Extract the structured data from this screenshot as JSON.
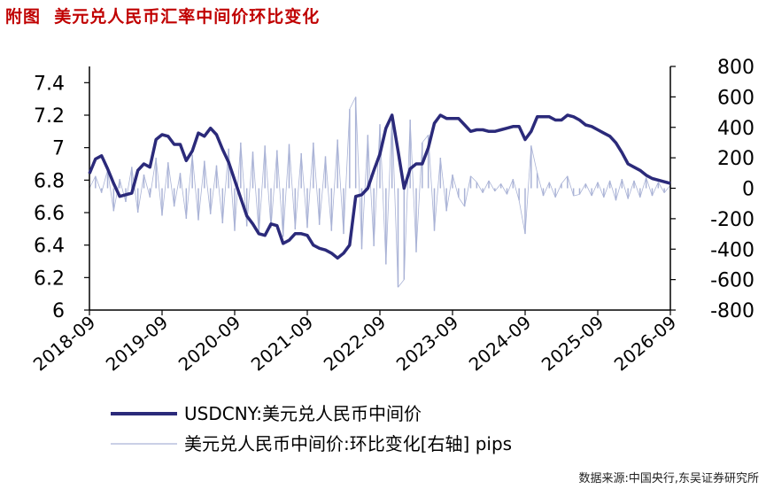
{
  "title": "附图  美元兑人民币汇率中间价环比变化",
  "source": "数据来源:中国央行,东吴证券研究所",
  "colors": {
    "title": "#c00000",
    "line": "#2b2a7a",
    "bars": "#aab3d6"
  },
  "chart_data": {
    "type": "line",
    "x_ticks": [
      "2018-09",
      "2019-09",
      "2020-09",
      "2021-09",
      "2022-09",
      "2023-09",
      "2024-09",
      "2025-09",
      "2026-09"
    ],
    "y_left_ticks": [
      "7.4",
      "7.2",
      "7",
      "6.8",
      "6.6",
      "6.4",
      "6.2",
      "6"
    ],
    "y_right_ticks": [
      "800",
      "600",
      "400",
      "200",
      "0",
      "-200",
      "-400",
      "-600",
      "-800"
    ],
    "ylim_left": [
      6,
      7.5
    ],
    "ylim_right": [
      -800,
      800
    ],
    "legend": [
      {
        "label": "USDCNY:美元兑人民币中间价",
        "key": "line"
      },
      {
        "label": "美元兑人民币中间价:环比变化[右轴] pips",
        "key": "bars"
      }
    ],
    "series": [
      {
        "name": "USDCNY:美元兑人民币中间价",
        "axis": "left",
        "points": [
          [
            "2018-09",
            6.84
          ],
          [
            "2018-10",
            6.93
          ],
          [
            "2018-11",
            6.95
          ],
          [
            "2018-12",
            6.87
          ],
          [
            "2019-01",
            6.78
          ],
          [
            "2019-02",
            6.7
          ],
          [
            "2019-03",
            6.71
          ],
          [
            "2019-04",
            6.72
          ],
          [
            "2019-05",
            6.86
          ],
          [
            "2019-06",
            6.9
          ],
          [
            "2019-07",
            6.88
          ],
          [
            "2019-08",
            7.05
          ],
          [
            "2019-09",
            7.08
          ],
          [
            "2019-10",
            7.07
          ],
          [
            "2019-11",
            7.02
          ],
          [
            "2019-12",
            7.02
          ],
          [
            "2020-01",
            6.92
          ],
          [
            "2020-02",
            6.98
          ],
          [
            "2020-03",
            7.09
          ],
          [
            "2020-04",
            7.07
          ],
          [
            "2020-05",
            7.12
          ],
          [
            "2020-06",
            7.08
          ],
          [
            "2020-07",
            6.99
          ],
          [
            "2020-08",
            6.91
          ],
          [
            "2020-09",
            6.8
          ],
          [
            "2020-10",
            6.69
          ],
          [
            "2020-11",
            6.58
          ],
          [
            "2020-12",
            6.53
          ],
          [
            "2021-01",
            6.47
          ],
          [
            "2021-02",
            6.46
          ],
          [
            "2021-03",
            6.53
          ],
          [
            "2021-04",
            6.52
          ],
          [
            "2021-05",
            6.41
          ],
          [
            "2021-06",
            6.43
          ],
          [
            "2021-07",
            6.47
          ],
          [
            "2021-08",
            6.47
          ],
          [
            "2021-09",
            6.46
          ],
          [
            "2021-10",
            6.4
          ],
          [
            "2021-11",
            6.38
          ],
          [
            "2021-12",
            6.37
          ],
          [
            "2022-01",
            6.35
          ],
          [
            "2022-02",
            6.32
          ],
          [
            "2022-03",
            6.35
          ],
          [
            "2022-04",
            6.4
          ],
          [
            "2022-05",
            6.7
          ],
          [
            "2022-06",
            6.71
          ],
          [
            "2022-07",
            6.75
          ],
          [
            "2022-08",
            6.86
          ],
          [
            "2022-09",
            6.96
          ],
          [
            "2022-10",
            7.12
          ],
          [
            "2022-11",
            7.2
          ],
          [
            "2022-12",
            6.98
          ],
          [
            "2023-01",
            6.75
          ],
          [
            "2023-02",
            6.87
          ],
          [
            "2023-03",
            6.9
          ],
          [
            "2023-04",
            6.9
          ],
          [
            "2023-05",
            7.0
          ],
          [
            "2023-06",
            7.15
          ],
          [
            "2023-07",
            7.2
          ],
          [
            "2023-08",
            7.18
          ],
          [
            "2023-09",
            7.18
          ],
          [
            "2023-10",
            7.18
          ],
          [
            "2023-11",
            7.14
          ],
          [
            "2023-12",
            7.1
          ],
          [
            "2024-01",
            7.11
          ],
          [
            "2024-02",
            7.11
          ],
          [
            "2024-03",
            7.1
          ],
          [
            "2024-04",
            7.1
          ],
          [
            "2024-05",
            7.11
          ],
          [
            "2024-06",
            7.12
          ],
          [
            "2024-07",
            7.13
          ],
          [
            "2024-08",
            7.13
          ],
          [
            "2024-09",
            7.05
          ],
          [
            "2024-10",
            7.1
          ],
          [
            "2024-11",
            7.19
          ],
          [
            "2024-12",
            7.19
          ],
          [
            "2025-01",
            7.19
          ],
          [
            "2025-02",
            7.17
          ],
          [
            "2025-03",
            7.17
          ],
          [
            "2025-04",
            7.2
          ],
          [
            "2025-05",
            7.19
          ],
          [
            "2025-06",
            7.17
          ],
          [
            "2025-07",
            7.14
          ],
          [
            "2025-08",
            7.13
          ],
          [
            "2025-09",
            7.11
          ],
          [
            "2025-10",
            7.09
          ],
          [
            "2025-11",
            7.07
          ],
          [
            "2025-12",
            7.03
          ],
          [
            "2026-01",
            6.97
          ],
          [
            "2026-02",
            6.9
          ],
          [
            "2026-03",
            6.88
          ],
          [
            "2026-04",
            6.86
          ],
          [
            "2026-05",
            6.83
          ],
          [
            "2026-06",
            6.81
          ],
          [
            "2026-07",
            6.8
          ],
          [
            "2026-08",
            6.79
          ],
          [
            "2026-09",
            6.78
          ]
        ]
      },
      {
        "name": "美元兑人民币中间价:环比变化[右轴] pips",
        "axis": "right",
        "points": [
          [
            "2018-09",
            0
          ],
          [
            "2018-10",
            80
          ],
          [
            "2018-11",
            -30
          ],
          [
            "2018-12",
            120
          ],
          [
            "2019-01",
            -150
          ],
          [
            "2019-02",
            60
          ],
          [
            "2019-03",
            -90
          ],
          [
            "2019-04",
            140
          ],
          [
            "2019-05",
            -160
          ],
          [
            "2019-06",
            90
          ],
          [
            "2019-07",
            -60
          ],
          [
            "2019-08",
            200
          ],
          [
            "2019-09",
            -180
          ],
          [
            "2019-10",
            170
          ],
          [
            "2019-11",
            -120
          ],
          [
            "2019-12",
            100
          ],
          [
            "2020-01",
            -200
          ],
          [
            "2020-02",
            220
          ],
          [
            "2020-03",
            -210
          ],
          [
            "2020-04",
            180
          ],
          [
            "2020-05",
            -170
          ],
          [
            "2020-06",
            150
          ],
          [
            "2020-07",
            -230
          ],
          [
            "2020-08",
            260
          ],
          [
            "2020-09",
            -280
          ],
          [
            "2020-10",
            300
          ],
          [
            "2020-11",
            -250
          ],
          [
            "2020-12",
            240
          ],
          [
            "2021-01",
            -300
          ],
          [
            "2021-02",
            280
          ],
          [
            "2021-03",
            -260
          ],
          [
            "2021-04",
            250
          ],
          [
            "2021-05",
            -320
          ],
          [
            "2021-06",
            290
          ],
          [
            "2021-07",
            -270
          ],
          [
            "2021-08",
            230
          ],
          [
            "2021-09",
            -260
          ],
          [
            "2021-10",
            300
          ],
          [
            "2021-11",
            -240
          ],
          [
            "2021-12",
            210
          ],
          [
            "2022-01",
            -280
          ],
          [
            "2022-02",
            320
          ],
          [
            "2022-03",
            -300
          ],
          [
            "2022-04",
            520
          ],
          [
            "2022-05",
            600
          ],
          [
            "2022-06",
            -400
          ],
          [
            "2022-07",
            350
          ],
          [
            "2022-08",
            -380
          ],
          [
            "2022-09",
            420
          ],
          [
            "2022-10",
            -500
          ],
          [
            "2022-11",
            480
          ],
          [
            "2022-12",
            -650
          ],
          [
            "2023-01",
            -600
          ],
          [
            "2023-02",
            450
          ],
          [
            "2023-03",
            -420
          ],
          [
            "2023-04",
            300
          ],
          [
            "2023-05",
            350
          ],
          [
            "2023-06",
            -280
          ],
          [
            "2023-07",
            200
          ],
          [
            "2023-08",
            -150
          ],
          [
            "2023-09",
            90
          ],
          [
            "2023-10",
            -60
          ],
          [
            "2023-11",
            -120
          ],
          [
            "2023-12",
            80
          ],
          [
            "2024-01",
            40
          ],
          [
            "2024-02",
            -30
          ],
          [
            "2024-03",
            50
          ],
          [
            "2024-04",
            -20
          ],
          [
            "2024-05",
            30
          ],
          [
            "2024-06",
            -40
          ],
          [
            "2024-07",
            60
          ],
          [
            "2024-08",
            -80
          ],
          [
            "2024-09",
            -300
          ],
          [
            "2024-10",
            280
          ],
          [
            "2024-11",
            100
          ],
          [
            "2024-12",
            -50
          ],
          [
            "2025-01",
            40
          ],
          [
            "2025-02",
            -60
          ],
          [
            "2025-03",
            30
          ],
          [
            "2025-04",
            80
          ],
          [
            "2025-05",
            -50
          ],
          [
            "2025-06",
            -40
          ],
          [
            "2025-07",
            30
          ],
          [
            "2025-08",
            -50
          ],
          [
            "2025-09",
            40
          ],
          [
            "2025-10",
            -60
          ],
          [
            "2025-11",
            50
          ],
          [
            "2025-12",
            -80
          ],
          [
            "2026-01",
            60
          ],
          [
            "2026-02",
            -70
          ],
          [
            "2026-03",
            50
          ],
          [
            "2026-04",
            -60
          ],
          [
            "2026-05",
            70
          ],
          [
            "2026-06",
            -50
          ],
          [
            "2026-07",
            40
          ],
          [
            "2026-08",
            -30
          ],
          [
            "2026-09",
            20
          ]
        ]
      }
    ]
  }
}
